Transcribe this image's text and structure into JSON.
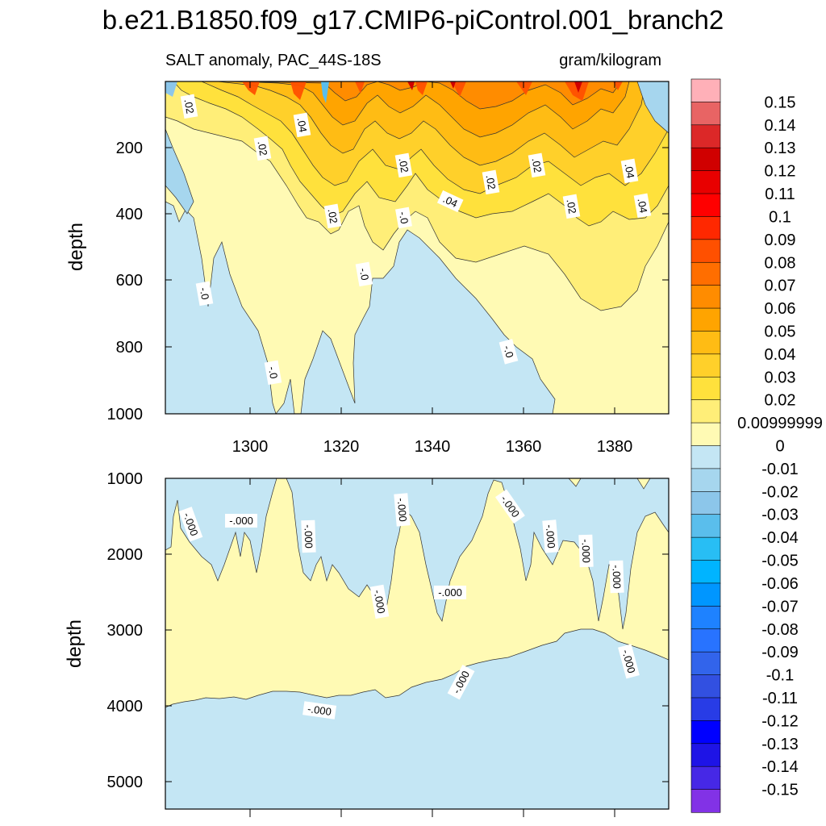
{
  "chart_data": [
    {
      "type": "heatmap",
      "panel": "upper",
      "title": "b.e21.B1850.f09_g17.CMIP6-piControl.001_branch2",
      "left_subtitle": "SALT anomaly, PAC_44S-18S",
      "right_subtitle": "gram/kilogram",
      "xlabel": "",
      "ylabel": "depth",
      "xlim": [
        1282,
        1391
      ],
      "ylim": [
        1000,
        0
      ],
      "xticks": [
        "1300",
        "1320",
        "1340",
        "1360",
        "1380"
      ],
      "yticks": [
        "200",
        "400",
        "600",
        "800",
        "1000"
      ],
      "contour_labels": [
        ".02",
        ".04",
        ".02",
        "-.0",
        "-.0",
        "-.0",
        ".04",
        ".02",
        ".02",
        ".04",
        ".02",
        ".02",
        ".02",
        ".04",
        ".02",
        "-.0",
        "-.0"
      ],
      "approx_max_anomaly": 0.1,
      "approx_min_anomaly": -0.04
    },
    {
      "type": "heatmap",
      "panel": "lower",
      "xlabel": "",
      "ylabel": "depth",
      "xlim": [
        1282,
        1391
      ],
      "ylim": [
        5350,
        1000
      ],
      "yticks": [
        "1000",
        "2000",
        "3000",
        "4000",
        "5000"
      ],
      "contour_labels": [
        "-.000",
        "-.000",
        "-.000",
        "-.000",
        "-.000",
        "-.000",
        "-.000",
        "-.000",
        "-.000",
        "-.000",
        "-.000",
        "-.000"
      ],
      "description_levels": "anomaly between 0 and 0.00999999 in the middle layer, slightly negative above and below"
    }
  ],
  "colorbar": {
    "labels": [
      "0.15",
      "0.14",
      "0.13",
      "0.12",
      "0.11",
      "0.1",
      "0.09",
      "0.08",
      "0.07",
      "0.06",
      "0.05",
      "0.04",
      "0.03",
      "0.02",
      "0.00999999",
      "0",
      "-0.01",
      "-0.02",
      "-0.03",
      "-0.04",
      "-0.05",
      "-0.06",
      "-0.07",
      "-0.08",
      "-0.09",
      "-0.1",
      "-0.11",
      "-0.12",
      "-0.13",
      "-0.14",
      "-0.15"
    ],
    "colors": [
      "#FFB0B8",
      "#E86464",
      "#DC2828",
      "#D00000",
      "#E80000",
      "#FF0000",
      "#FF2800",
      "#FF5000",
      "#FF6E00",
      "#FF8C00",
      "#FFA400",
      "#FFBC14",
      "#FFD02A",
      "#FFE13C",
      "#FFEE78",
      "#FFFAB4",
      "#C4E6F4",
      "#A6D6EE",
      "#8CC6EA",
      "#5ABEEC",
      "#28BEF4",
      "#00B4FF",
      "#0096FF",
      "#1E82FF",
      "#2873FF",
      "#3264EB",
      "#3250E1",
      "#283CE6",
      "#0000FF",
      "#1E14E6",
      "#4628E6",
      "#8232E6"
    ]
  }
}
